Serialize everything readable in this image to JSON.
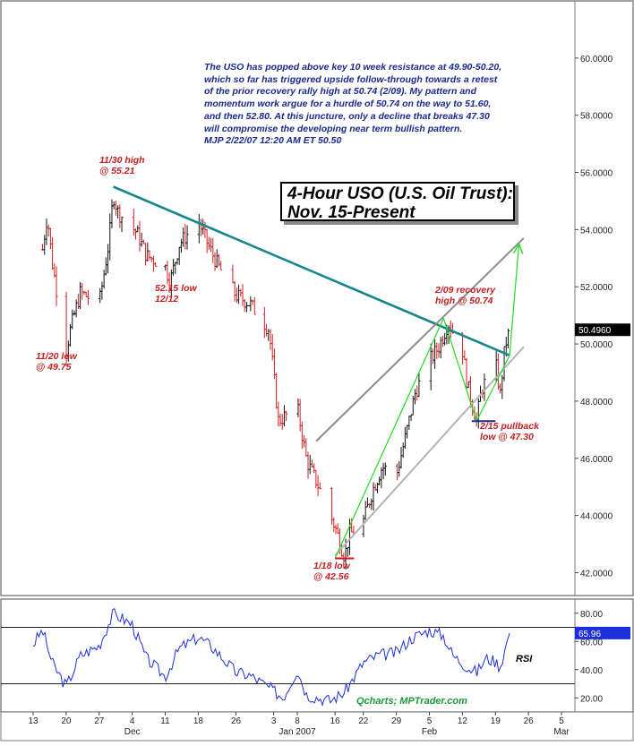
{
  "chart_data": [
    {
      "type": "candlestick",
      "title": "4-Hour USO (U.S. Oil Trust):",
      "subtitle": "Nov. 15-Present",
      "ylim": [
        41.2,
        62.0
      ],
      "y_ticks": [
        "42.0000",
        "44.0000",
        "46.0000",
        "48.0000",
        "50.0000",
        "52.0000",
        "54.0000",
        "56.0000",
        "58.0000",
        "60.0000"
      ],
      "y_tick_values": [
        42,
        44,
        46,
        48,
        50,
        52,
        54,
        56,
        58,
        60
      ],
      "x_tick_labels": [
        "13",
        "20",
        "27",
        "4",
        "11",
        "18",
        "26",
        "3",
        "8",
        "16",
        "22",
        "29",
        "5",
        "12",
        "19",
        "26",
        "5"
      ],
      "x_tick_dates": [
        "2006-11-13",
        "2006-11-20",
        "2006-11-27",
        "2006-12-04",
        "2006-12-11",
        "2006-12-18",
        "2006-12-26",
        "2007-01-03",
        "2007-01-08",
        "2007-01-16",
        "2007-01-22",
        "2007-01-29",
        "2007-02-05",
        "2007-02-12",
        "2007-02-19",
        "2007-02-26",
        "2007-03-05"
      ],
      "month_labels": [
        "Dec",
        "Jan 2007",
        "Feb",
        "Mar"
      ],
      "month_label_dates": [
        "2006-12-04",
        "2007-01-08",
        "2007-02-05",
        "2007-03-05"
      ],
      "last_price": "50.4960",
      "price_path": [
        {
          "date": "2006-11-15",
          "price": 53.3
        },
        {
          "date": "2006-11-16",
          "price": 54.5
        },
        {
          "date": "2006-11-17",
          "price": 52.9
        },
        {
          "date": "2006-11-20",
          "price": 49.75
        },
        {
          "date": "2006-11-21",
          "price": 50.6
        },
        {
          "date": "2006-11-23",
          "price": 51.8
        },
        {
          "date": "2006-11-27",
          "price": 51.4
        },
        {
          "date": "2006-11-29",
          "price": 53.5
        },
        {
          "date": "2006-11-30",
          "price": 55.21
        },
        {
          "date": "2006-12-01",
          "price": 54.6
        },
        {
          "date": "2006-12-05",
          "price": 53.9
        },
        {
          "date": "2006-12-07",
          "price": 53.1
        },
        {
          "date": "2006-12-11",
          "price": 52.7
        },
        {
          "date": "2006-12-12",
          "price": 52.15
        },
        {
          "date": "2006-12-14",
          "price": 53.5
        },
        {
          "date": "2006-12-18",
          "price": 54.3
        },
        {
          "date": "2006-12-20",
          "price": 53.5
        },
        {
          "date": "2006-12-22",
          "price": 52.8
        },
        {
          "date": "2006-12-26",
          "price": 51.7
        },
        {
          "date": "2006-12-29",
          "price": 51.4
        },
        {
          "date": "2007-01-02",
          "price": 50.5
        },
        {
          "date": "2007-01-04",
          "price": 47.3
        },
        {
          "date": "2007-01-08",
          "price": 47.8
        },
        {
          "date": "2007-01-10",
          "price": 45.9
        },
        {
          "date": "2007-01-12",
          "price": 45.2
        },
        {
          "date": "2007-01-16",
          "price": 43.6
        },
        {
          "date": "2007-01-18",
          "price": 42.56
        },
        {
          "date": "2007-01-19",
          "price": 43.3
        },
        {
          "date": "2007-01-22",
          "price": 43.8
        },
        {
          "date": "2007-01-24",
          "price": 44.9
        },
        {
          "date": "2007-01-26",
          "price": 45.7
        },
        {
          "date": "2007-01-29",
          "price": 45.4
        },
        {
          "date": "2007-01-31",
          "price": 46.8
        },
        {
          "date": "2007-02-02",
          "price": 48.3
        },
        {
          "date": "2007-02-05",
          "price": 49.4
        },
        {
          "date": "2007-02-07",
          "price": 49.9
        },
        {
          "date": "2007-02-09",
          "price": 50.74
        },
        {
          "date": "2007-02-12",
          "price": 49.8
        },
        {
          "date": "2007-02-13",
          "price": 48.6
        },
        {
          "date": "2007-02-15",
          "price": 47.3
        },
        {
          "date": "2007-02-16",
          "price": 48.4
        },
        {
          "date": "2007-02-19",
          "price": 49.4
        },
        {
          "date": "2007-02-20",
          "price": 48.2
        },
        {
          "date": "2007-02-21",
          "price": 49.9
        },
        {
          "date": "2007-02-22",
          "price": 50.5
        }
      ],
      "trendlines": [
        {
          "from_date": "2006-11-30",
          "from_price": 55.5,
          "to_date": "2007-02-22",
          "to_price": 49.6,
          "color": "#14868c"
        },
        {
          "from_date": "2007-01-12",
          "from_price": 46.6,
          "to_date": "2007-02-25",
          "to_price": 53.7,
          "color": "#8c8c8c"
        },
        {
          "from_date": "2007-01-16",
          "from_price": 42.6,
          "to_date": "2007-02-25",
          "to_price": 49.9,
          "color": "#b4b4b4"
        },
        {
          "from_date": "2007-01-16",
          "from_price": 42.5,
          "to_date": "2007-02-08",
          "to_price": 50.9,
          "color": "#22dd22"
        },
        {
          "from_date": "2007-02-08",
          "from_price": 50.9,
          "to_date": "2007-02-15",
          "to_price": 47.3,
          "color": "#22dd22"
        },
        {
          "from_date": "2007-02-15",
          "from_price": 47.3,
          "to_date": "2007-02-22",
          "to_price": 49.6,
          "color": "#22dd22"
        },
        {
          "from_date": "2007-02-22",
          "from_price": 49.6,
          "to_date": "2007-02-24",
          "to_price": 53.5,
          "color": "#22dd22"
        }
      ],
      "support_lines": [
        {
          "from_date": "2007-01-16",
          "to_date": "2007-01-20",
          "price": 42.5,
          "color": "#dd1111"
        },
        {
          "from_date": "2007-02-14",
          "to_date": "2007-02-19",
          "price": 47.3,
          "color": "#1a2a8c"
        }
      ],
      "commentary": [
        "The USO has popped above key 10 week resistance at 49.90-50.20,",
        "which so far has triggered upside follow-through towards a retest",
        "of the prior recovery rally high at 50.74 (2/09). My pattern and",
        "momentum work argue for a hurdle of 50.74 on the way to 51.60,",
        "and then 52.80. At this juncture, only a decline that breaks 47.30",
        "will compromise the developing near term bullish pattern.",
        "MJP  2/22/07 12:20 AM ET  50.50"
      ],
      "annotations": {
        "high_1130": [
          "11/30 high",
          "@ 55.21"
        ],
        "low_1120": [
          "11/20 low",
          "@ 49.75"
        ],
        "low_1212": [
          "52.15 low",
          "12/12"
        ],
        "low_0118": [
          "1/18 low",
          "@ 42.56"
        ],
        "recovery_0209": [
          "2/09 recovery",
          "high @ 50.74"
        ],
        "pullback_0215": [
          "2/15 pullback",
          "low @ 47.30"
        ]
      },
      "credit": "Qcharts; MPTrader.com"
    },
    {
      "type": "line",
      "series": [
        {
          "name": "RSI"
        }
      ],
      "ylim": [
        10,
        90
      ],
      "y_ticks": [
        "20.00",
        "40.00",
        "60.00",
        "80.00"
      ],
      "y_tick_values": [
        20,
        40,
        60,
        80
      ],
      "reference_lines": [
        30,
        70
      ],
      "last_value": "65.96",
      "rsi_path": [
        {
          "date": "2006-11-13",
          "value": 58
        },
        {
          "date": "2006-11-15",
          "value": 68
        },
        {
          "date": "2006-11-17",
          "value": 45
        },
        {
          "date": "2006-11-20",
          "value": 28
        },
        {
          "date": "2006-11-23",
          "value": 50
        },
        {
          "date": "2006-11-27",
          "value": 57
        },
        {
          "date": "2006-11-30",
          "value": 80
        },
        {
          "date": "2006-12-04",
          "value": 72
        },
        {
          "date": "2006-12-07",
          "value": 48
        },
        {
          "date": "2006-12-11",
          "value": 35
        },
        {
          "date": "2006-12-14",
          "value": 55
        },
        {
          "date": "2006-12-18",
          "value": 63
        },
        {
          "date": "2006-12-21",
          "value": 56
        },
        {
          "date": "2006-12-26",
          "value": 38
        },
        {
          "date": "2006-12-29",
          "value": 36
        },
        {
          "date": "2007-01-03",
          "value": 25
        },
        {
          "date": "2007-01-05",
          "value": 20
        },
        {
          "date": "2007-01-08",
          "value": 40
        },
        {
          "date": "2007-01-10",
          "value": 22
        },
        {
          "date": "2007-01-15",
          "value": 18
        },
        {
          "date": "2007-01-18",
          "value": 24
        },
        {
          "date": "2007-01-22",
          "value": 45
        },
        {
          "date": "2007-01-25",
          "value": 50
        },
        {
          "date": "2007-01-29",
          "value": 52
        },
        {
          "date": "2007-02-01",
          "value": 62
        },
        {
          "date": "2007-02-05",
          "value": 68
        },
        {
          "date": "2007-02-08",
          "value": 64
        },
        {
          "date": "2007-02-10",
          "value": 50
        },
        {
          "date": "2007-02-13",
          "value": 42
        },
        {
          "date": "2007-02-15",
          "value": 38
        },
        {
          "date": "2007-02-17",
          "value": 48
        },
        {
          "date": "2007-02-19",
          "value": 46
        },
        {
          "date": "2007-02-20",
          "value": 42
        },
        {
          "date": "2007-02-22",
          "value": 65.96
        }
      ]
    }
  ]
}
